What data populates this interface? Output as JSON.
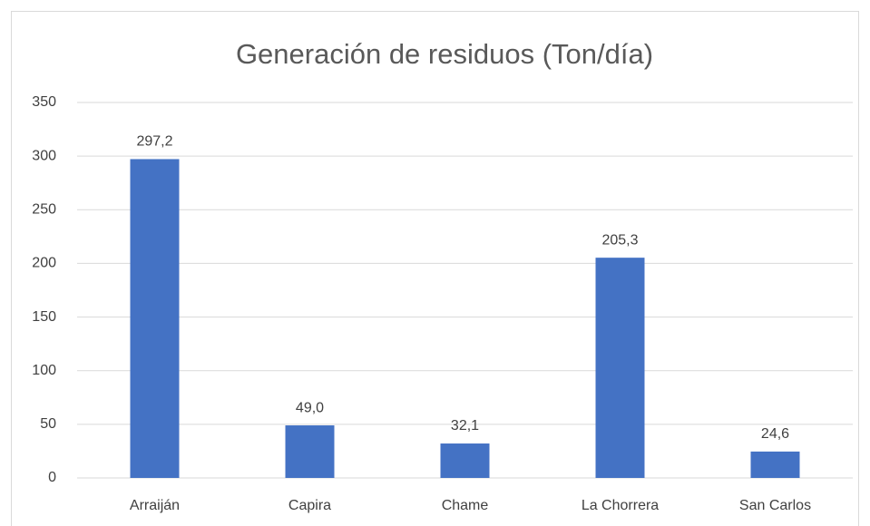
{
  "chart_data": {
    "type": "bar",
    "title": "Generación de residuos (Ton/día)",
    "categories": [
      "Arraiján",
      "Capira",
      "Chame",
      "La Chorrera",
      "San Carlos"
    ],
    "values": [
      297.2,
      49.0,
      32.1,
      205.3,
      24.6
    ],
    "value_labels": [
      "297,2",
      "49,0",
      "32,1",
      "205,3",
      "24,6"
    ],
    "color": "#4472c4",
    "ylim": [
      0,
      350
    ],
    "yticks": [
      0,
      50,
      100,
      150,
      200,
      250,
      300,
      350
    ],
    "grid": true
  }
}
